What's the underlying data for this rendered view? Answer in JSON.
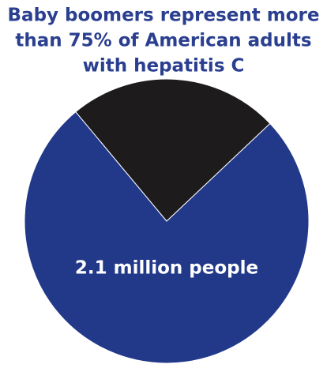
{
  "chart_data": {
    "type": "pie",
    "title": [
      "Baby boomers represent more",
      "than 75% of American adults",
      "with hepatitis C"
    ],
    "categories": [
      null,
      null
    ],
    "values": [
      76,
      24
    ],
    "colors": [
      "#22398a",
      "#1e1b1c"
    ],
    "annotation": "2.1 million people"
  }
}
